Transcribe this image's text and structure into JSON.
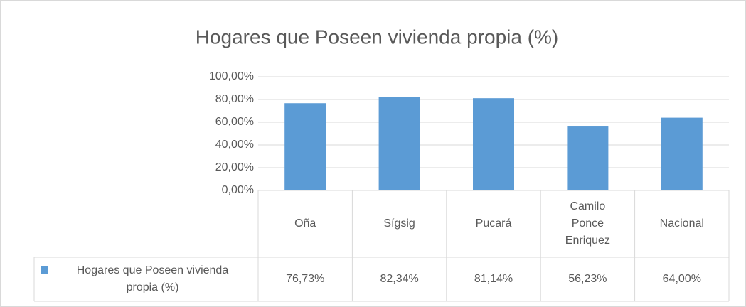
{
  "chart_data": {
    "type": "bar",
    "title": "Hogares que Poseen vivienda propia (%)",
    "categories": [
      "Oña",
      "Sígsig",
      "Pucará",
      "Camilo Ponce Enriquez",
      "Nacional"
    ],
    "series": [
      {
        "name": "Hogares que Poseen vivienda propia (%)",
        "color": "#5b9bd5",
        "values": [
          76.73,
          82.34,
          81.14,
          56.23,
          64.0
        ],
        "value_labels": [
          "76,73%",
          "82,34%",
          "81,14%",
          "56,23%",
          "64,00%"
        ]
      }
    ],
    "ylim": [
      0,
      100
    ],
    "yticks": [
      {
        "value": 0,
        "label": "0,00%"
      },
      {
        "value": 20,
        "label": "20,00%"
      },
      {
        "value": 40,
        "label": "40,00%"
      },
      {
        "value": 60,
        "label": "60,00%"
      },
      {
        "value": 80,
        "label": "80,00%"
      },
      {
        "value": 100,
        "label": "100,00%"
      }
    ],
    "grid": true
  }
}
